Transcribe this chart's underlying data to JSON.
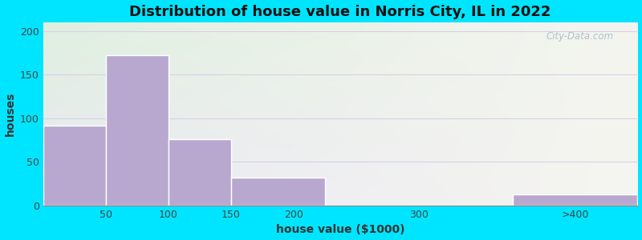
{
  "title": "Distribution of house value in Norris City, IL in 2022",
  "xlabel": "house value ($1000)",
  "ylabel": "houses",
  "bar_values": [
    92,
    172,
    76,
    32,
    0,
    13
  ],
  "bar_left_edges": [
    0,
    50,
    100,
    150,
    225,
    375
  ],
  "bar_right_edges": [
    50,
    100,
    150,
    225,
    375,
    475
  ],
  "bar_color": "#b8a8d0",
  "bar_edgecolor": "#ffffff",
  "ylim": [
    0,
    210
  ],
  "xlim": [
    0,
    475
  ],
  "yticks": [
    0,
    50,
    100,
    150,
    200
  ],
  "xtick_positions": [
    50,
    100,
    150,
    200,
    300,
    425
  ],
  "xtick_labels": [
    "50",
    "100",
    "150",
    "200",
    "300",
    ">400"
  ],
  "bg_outer": "#00e5ff",
  "bg_top_left": "#dff0df",
  "bg_top_right": "#f5f5f0",
  "bg_bot_left": "#ebe8f5",
  "bg_bot_right": "#f5f5f0",
  "grid_color": "#d8d0e8",
  "title_fontsize": 13,
  "axis_label_fontsize": 10,
  "tick_fontsize": 9,
  "watermark_text": "City-Data.com"
}
